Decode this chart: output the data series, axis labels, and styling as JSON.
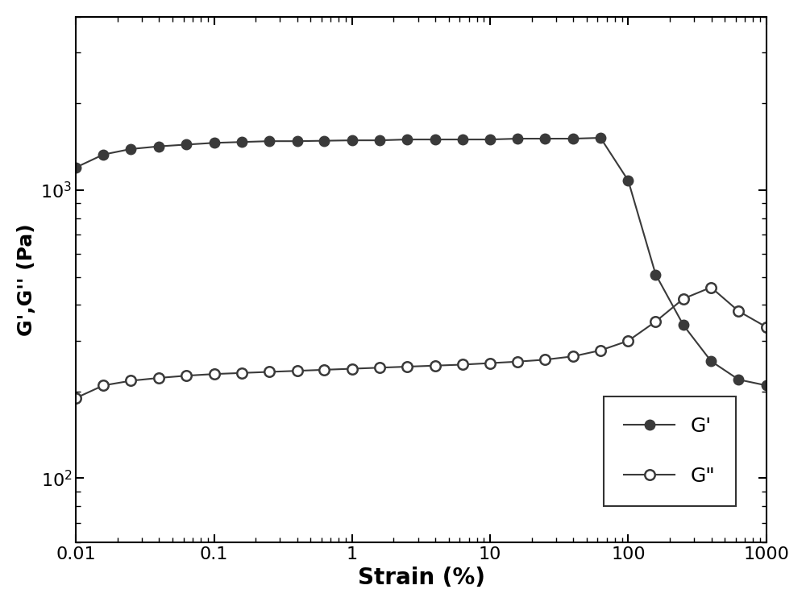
{
  "G_prime_x": [
    0.01,
    0.0158,
    0.025,
    0.04,
    0.063,
    0.1,
    0.158,
    0.25,
    0.4,
    0.63,
    1.0,
    1.58,
    2.5,
    4.0,
    6.3,
    10.0,
    15.8,
    25.0,
    40.0,
    63.0,
    100.0,
    158.0,
    251.0,
    398.0,
    631.0,
    1000.0
  ],
  "G_prime_y": [
    1200,
    1330,
    1390,
    1420,
    1440,
    1460,
    1470,
    1480,
    1480,
    1485,
    1490,
    1490,
    1500,
    1500,
    1500,
    1500,
    1510,
    1510,
    1510,
    1520,
    1080,
    510,
    340,
    255,
    220,
    210
  ],
  "G_dprime_x": [
    0.01,
    0.0158,
    0.025,
    0.04,
    0.063,
    0.1,
    0.158,
    0.25,
    0.4,
    0.63,
    1.0,
    1.58,
    2.5,
    4.0,
    6.3,
    10.0,
    15.8,
    25.0,
    40.0,
    63.0,
    100.0,
    158.0,
    251.0,
    398.0,
    631.0,
    1000.0
  ],
  "G_dprime_y": [
    190,
    210,
    218,
    223,
    227,
    230,
    232,
    234,
    236,
    238,
    240,
    242,
    244,
    246,
    248,
    251,
    254,
    258,
    265,
    278,
    300,
    350,
    420,
    460,
    380,
    335
  ],
  "color": "#3a3a3a",
  "xlabel": "Strain (%)",
  "ylabel": "G',G'' (Pa)",
  "xlim": [
    0.01,
    1000
  ],
  "ylim": [
    60,
    4000
  ],
  "legend_G_prime": "G'",
  "legend_G_dprime": "G\"",
  "markersize": 9,
  "linewidth": 1.5,
  "xlabel_fontsize": 20,
  "ylabel_fontsize": 18,
  "tick_fontsize": 16,
  "legend_fontsize": 18
}
